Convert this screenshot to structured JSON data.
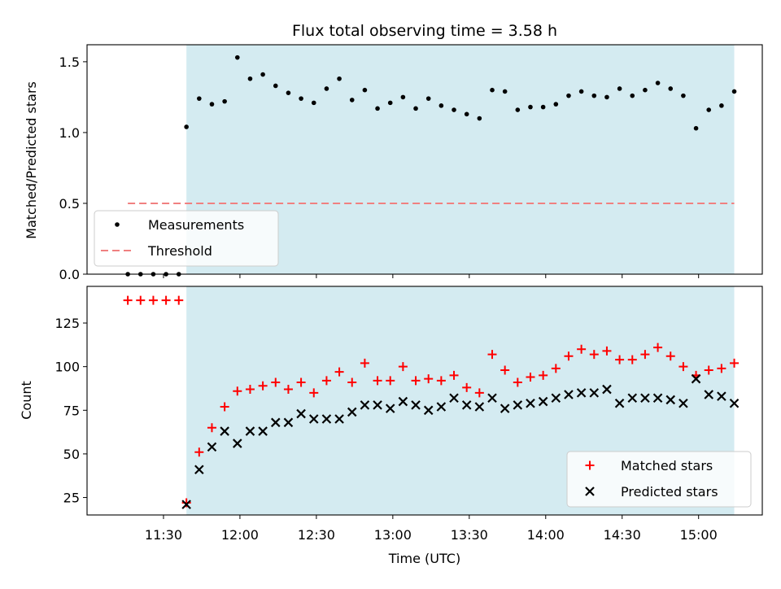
{
  "title": "Flux total observing time = 3.58 h",
  "chart_data": [
    {
      "type": "scatter",
      "ylabel": "Matched/Predicted stars",
      "ylim": [
        0,
        1.62
      ],
      "yticks": [
        "0.0",
        "0.5",
        "1.0",
        "1.5"
      ],
      "ytick_values": [
        0,
        0.5,
        1.0,
        1.5
      ],
      "shaded_region": {
        "x_start": "11:39",
        "x_end": "15:14",
        "color": "#d4ebf1"
      },
      "legend_position": "lower-left",
      "series": [
        {
          "name": "Measurements",
          "marker": "dot",
          "color": "#000000",
          "x": [
            "11:16",
            "11:21",
            "11:26",
            "11:31",
            "11:36",
            "11:39",
            "11:44",
            "11:49",
            "11:54",
            "11:59",
            "12:04",
            "12:09",
            "12:14",
            "12:19",
            "12:24",
            "12:29",
            "12:34",
            "12:39",
            "12:44",
            "12:49",
            "12:54",
            "12:59",
            "13:04",
            "13:09",
            "13:14",
            "13:19",
            "13:24",
            "13:29",
            "13:34",
            "13:39",
            "13:44",
            "13:49",
            "13:54",
            "13:59",
            "14:04",
            "14:09",
            "14:14",
            "14:19",
            "14:24",
            "14:29",
            "14:34",
            "14:39",
            "14:44",
            "14:49",
            "14:54",
            "14:59",
            "15:04",
            "15:09",
            "15:14"
          ],
          "values": [
            0,
            0,
            0,
            0,
            0,
            1.04,
            1.24,
            1.2,
            1.22,
            1.53,
            1.38,
            1.41,
            1.33,
            1.28,
            1.24,
            1.21,
            1.31,
            1.38,
            1.23,
            1.3,
            1.17,
            1.21,
            1.25,
            1.17,
            1.24,
            1.19,
            1.16,
            1.13,
            1.1,
            1.3,
            1.29,
            1.16,
            1.18,
            1.18,
            1.2,
            1.26,
            1.29,
            1.26,
            1.25,
            1.31,
            1.26,
            1.3,
            1.35,
            1.31,
            1.26,
            1.03,
            1.16,
            1.19,
            1.29
          ]
        },
        {
          "name": "Threshold",
          "marker": "dashed-line",
          "color": "#f08080",
          "x": [
            "11:16",
            "15:14"
          ],
          "values": [
            0.5,
            0.5
          ]
        }
      ]
    },
    {
      "type": "scatter",
      "ylabel": "Count",
      "xlabel": "Time (UTC)",
      "ylim": [
        15,
        146
      ],
      "yticks": [
        "25",
        "50",
        "75",
        "100",
        "125"
      ],
      "ytick_values": [
        25,
        50,
        75,
        100,
        125
      ],
      "xticks": [
        "11:30",
        "12:00",
        "12:30",
        "13:00",
        "13:30",
        "14:00",
        "14:30",
        "15:00"
      ],
      "xlim": [
        "11:00",
        "15:25"
      ],
      "shaded_region": {
        "x_start": "11:39",
        "x_end": "15:14",
        "color": "#d4ebf1"
      },
      "legend_position": "lower-right",
      "series": [
        {
          "name": "Matched stars",
          "marker": "plus",
          "color": "#ff0000",
          "x": [
            "11:16",
            "11:21",
            "11:26",
            "11:31",
            "11:36",
            "11:39",
            "11:44",
            "11:49",
            "11:54",
            "11:59",
            "12:04",
            "12:09",
            "12:14",
            "12:19",
            "12:24",
            "12:29",
            "12:34",
            "12:39",
            "12:44",
            "12:49",
            "12:54",
            "12:59",
            "13:04",
            "13:09",
            "13:14",
            "13:19",
            "13:24",
            "13:29",
            "13:34",
            "13:39",
            "13:44",
            "13:49",
            "13:54",
            "13:59",
            "14:04",
            "14:09",
            "14:14",
            "14:19",
            "14:24",
            "14:29",
            "14:34",
            "14:39",
            "14:44",
            "14:49",
            "14:54",
            "14:59",
            "15:04",
            "15:09",
            "15:14"
          ],
          "values": [
            138,
            138,
            138,
            138,
            138,
            22,
            51,
            65,
            77,
            86,
            87,
            89,
            91,
            87,
            91,
            85,
            92,
            97,
            91,
            102,
            92,
            92,
            100,
            92,
            93,
            92,
            95,
            88,
            85,
            107,
            98,
            91,
            94,
            95,
            99,
            106,
            110,
            107,
            109,
            104,
            104,
            107,
            111,
            106,
            100,
            95,
            98,
            99,
            102
          ]
        },
        {
          "name": "Predicted stars",
          "marker": "x",
          "color": "#000000",
          "x": [
            "11:39",
            "11:44",
            "11:49",
            "11:54",
            "11:59",
            "12:04",
            "12:09",
            "12:14",
            "12:19",
            "12:24",
            "12:29",
            "12:34",
            "12:39",
            "12:44",
            "12:49",
            "12:54",
            "12:59",
            "13:04",
            "13:09",
            "13:14",
            "13:19",
            "13:24",
            "13:29",
            "13:34",
            "13:39",
            "13:44",
            "13:49",
            "13:54",
            "13:59",
            "14:04",
            "14:09",
            "14:14",
            "14:19",
            "14:24",
            "14:29",
            "14:34",
            "14:39",
            "14:44",
            "14:49",
            "14:54",
            "14:59",
            "15:04",
            "15:09",
            "15:14"
          ],
          "values": [
            21,
            41,
            54,
            63,
            56,
            63,
            63,
            68,
            68,
            73,
            70,
            70,
            70,
            74,
            78,
            78,
            76,
            80,
            78,
            75,
            77,
            82,
            78,
            77,
            82,
            76,
            78,
            79,
            80,
            82,
            84,
            85,
            85,
            87,
            79,
            82,
            82,
            82,
            81,
            79,
            93,
            84,
            83,
            79
          ]
        }
      ]
    }
  ]
}
